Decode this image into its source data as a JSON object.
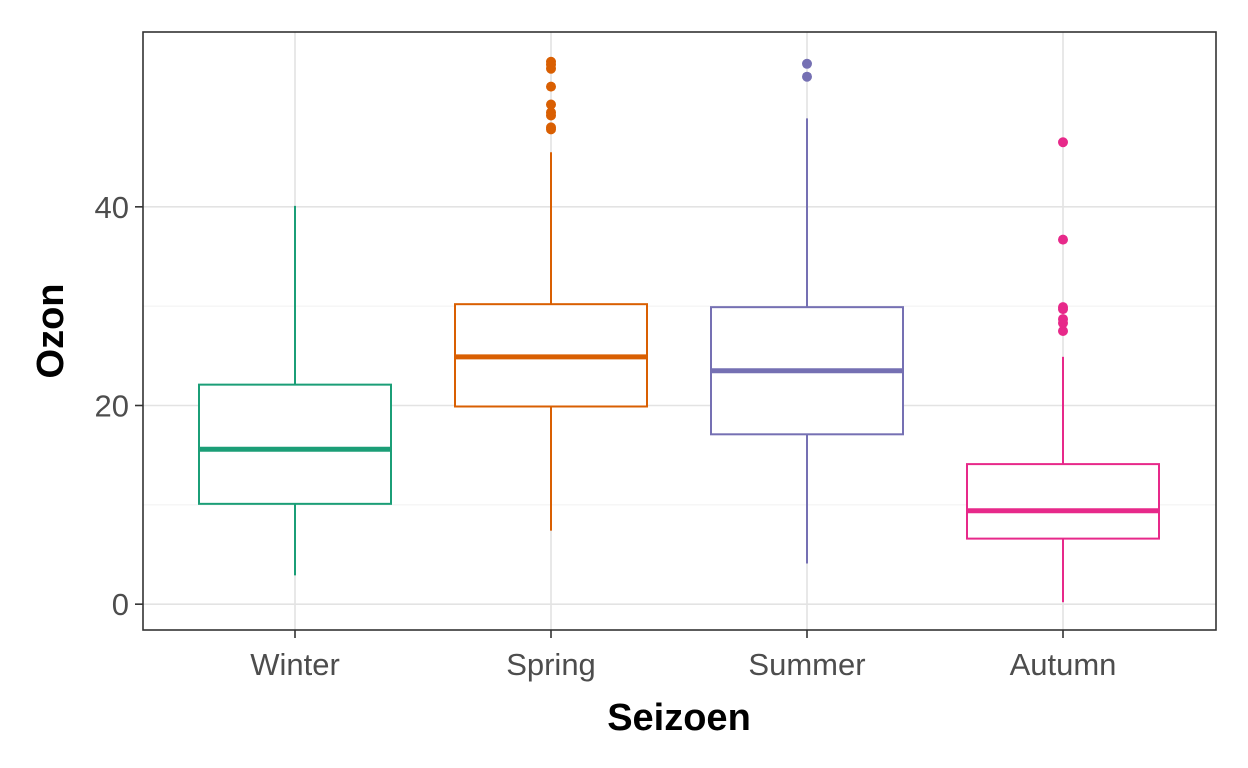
{
  "chart_data": {
    "type": "boxplot",
    "title": "",
    "xlabel": "Seizoen",
    "ylabel": "Ozon",
    "ylim": [
      -2.6,
      57.6
    ],
    "yticks": [
      0,
      20,
      40
    ],
    "grid": true,
    "legend": "none",
    "categories": [
      "Winter",
      "Spring",
      "Summer",
      "Autumn"
    ],
    "series": [
      {
        "category": "Winter",
        "color": "#1b9e77",
        "whisker_low": 2.9,
        "q1": 10.1,
        "median": 15.6,
        "q3": 22.1,
        "whisker_high": 40.1,
        "outliers": []
      },
      {
        "category": "Spring",
        "color": "#d95f02",
        "whisker_low": 7.4,
        "q1": 19.9,
        "median": 24.9,
        "q3": 30.2,
        "whisker_high": 45.5,
        "outliers": [
          47.8,
          48.0,
          49.2,
          49.5,
          50.3,
          52.1,
          53.9,
          54.3,
          54.6
        ]
      },
      {
        "category": "Summer",
        "color": "#7570b3",
        "whisker_low": 4.1,
        "q1": 17.1,
        "median": 23.5,
        "q3": 29.9,
        "whisker_high": 48.9,
        "outliers": [
          53.1,
          54.4
        ]
      },
      {
        "category": "Autumn",
        "color": "#e7298a",
        "whisker_low": 0.2,
        "q1": 6.6,
        "median": 9.4,
        "q3": 14.1,
        "whisker_high": 24.9,
        "outliers": [
          27.5,
          28.3,
          28.7,
          29.7,
          29.9,
          36.7,
          46.5
        ]
      }
    ]
  }
}
